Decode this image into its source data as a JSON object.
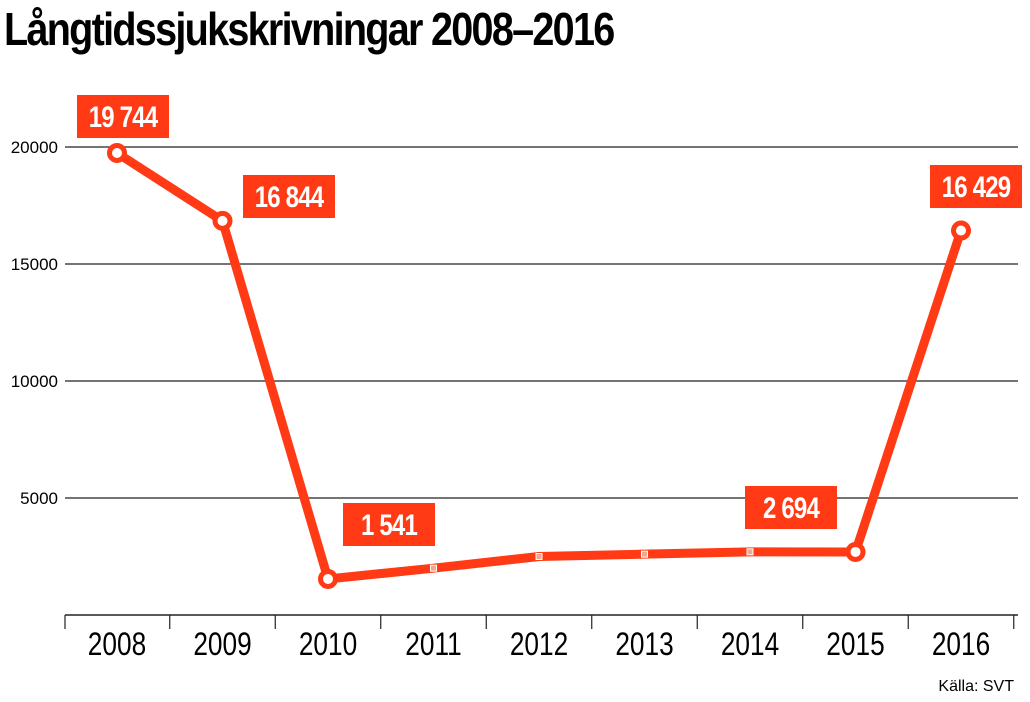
{
  "colors": {
    "line": "#ff3a14",
    "label_bg": "#ff3a14",
    "label_text": "#ffffff",
    "grid": "#222222",
    "text": "#000000"
  },
  "chart_data": {
    "type": "line",
    "title": "Långtidssjukskrivningar 2008–2016",
    "source": "Källa: SVT",
    "xlabel": "",
    "ylabel": "",
    "x": [
      "2008",
      "2009",
      "2010",
      "2011",
      "2012",
      "2013",
      "2014",
      "2015",
      "2016"
    ],
    "series": [
      {
        "values": [
          19744,
          16844,
          1541,
          2000,
          2500,
          2600,
          2700,
          2694,
          16429
        ]
      }
    ],
    "data_labels": [
      "19 744",
      "16 844",
      "1 541",
      null,
      null,
      null,
      null,
      "2 694",
      "16 429"
    ],
    "yticks": [
      5000,
      10000,
      15000,
      20000
    ],
    "ytick_labels": [
      "5000",
      "10000",
      "15000",
      "20000"
    ],
    "ylim": [
      0,
      22000
    ],
    "grid": true
  }
}
